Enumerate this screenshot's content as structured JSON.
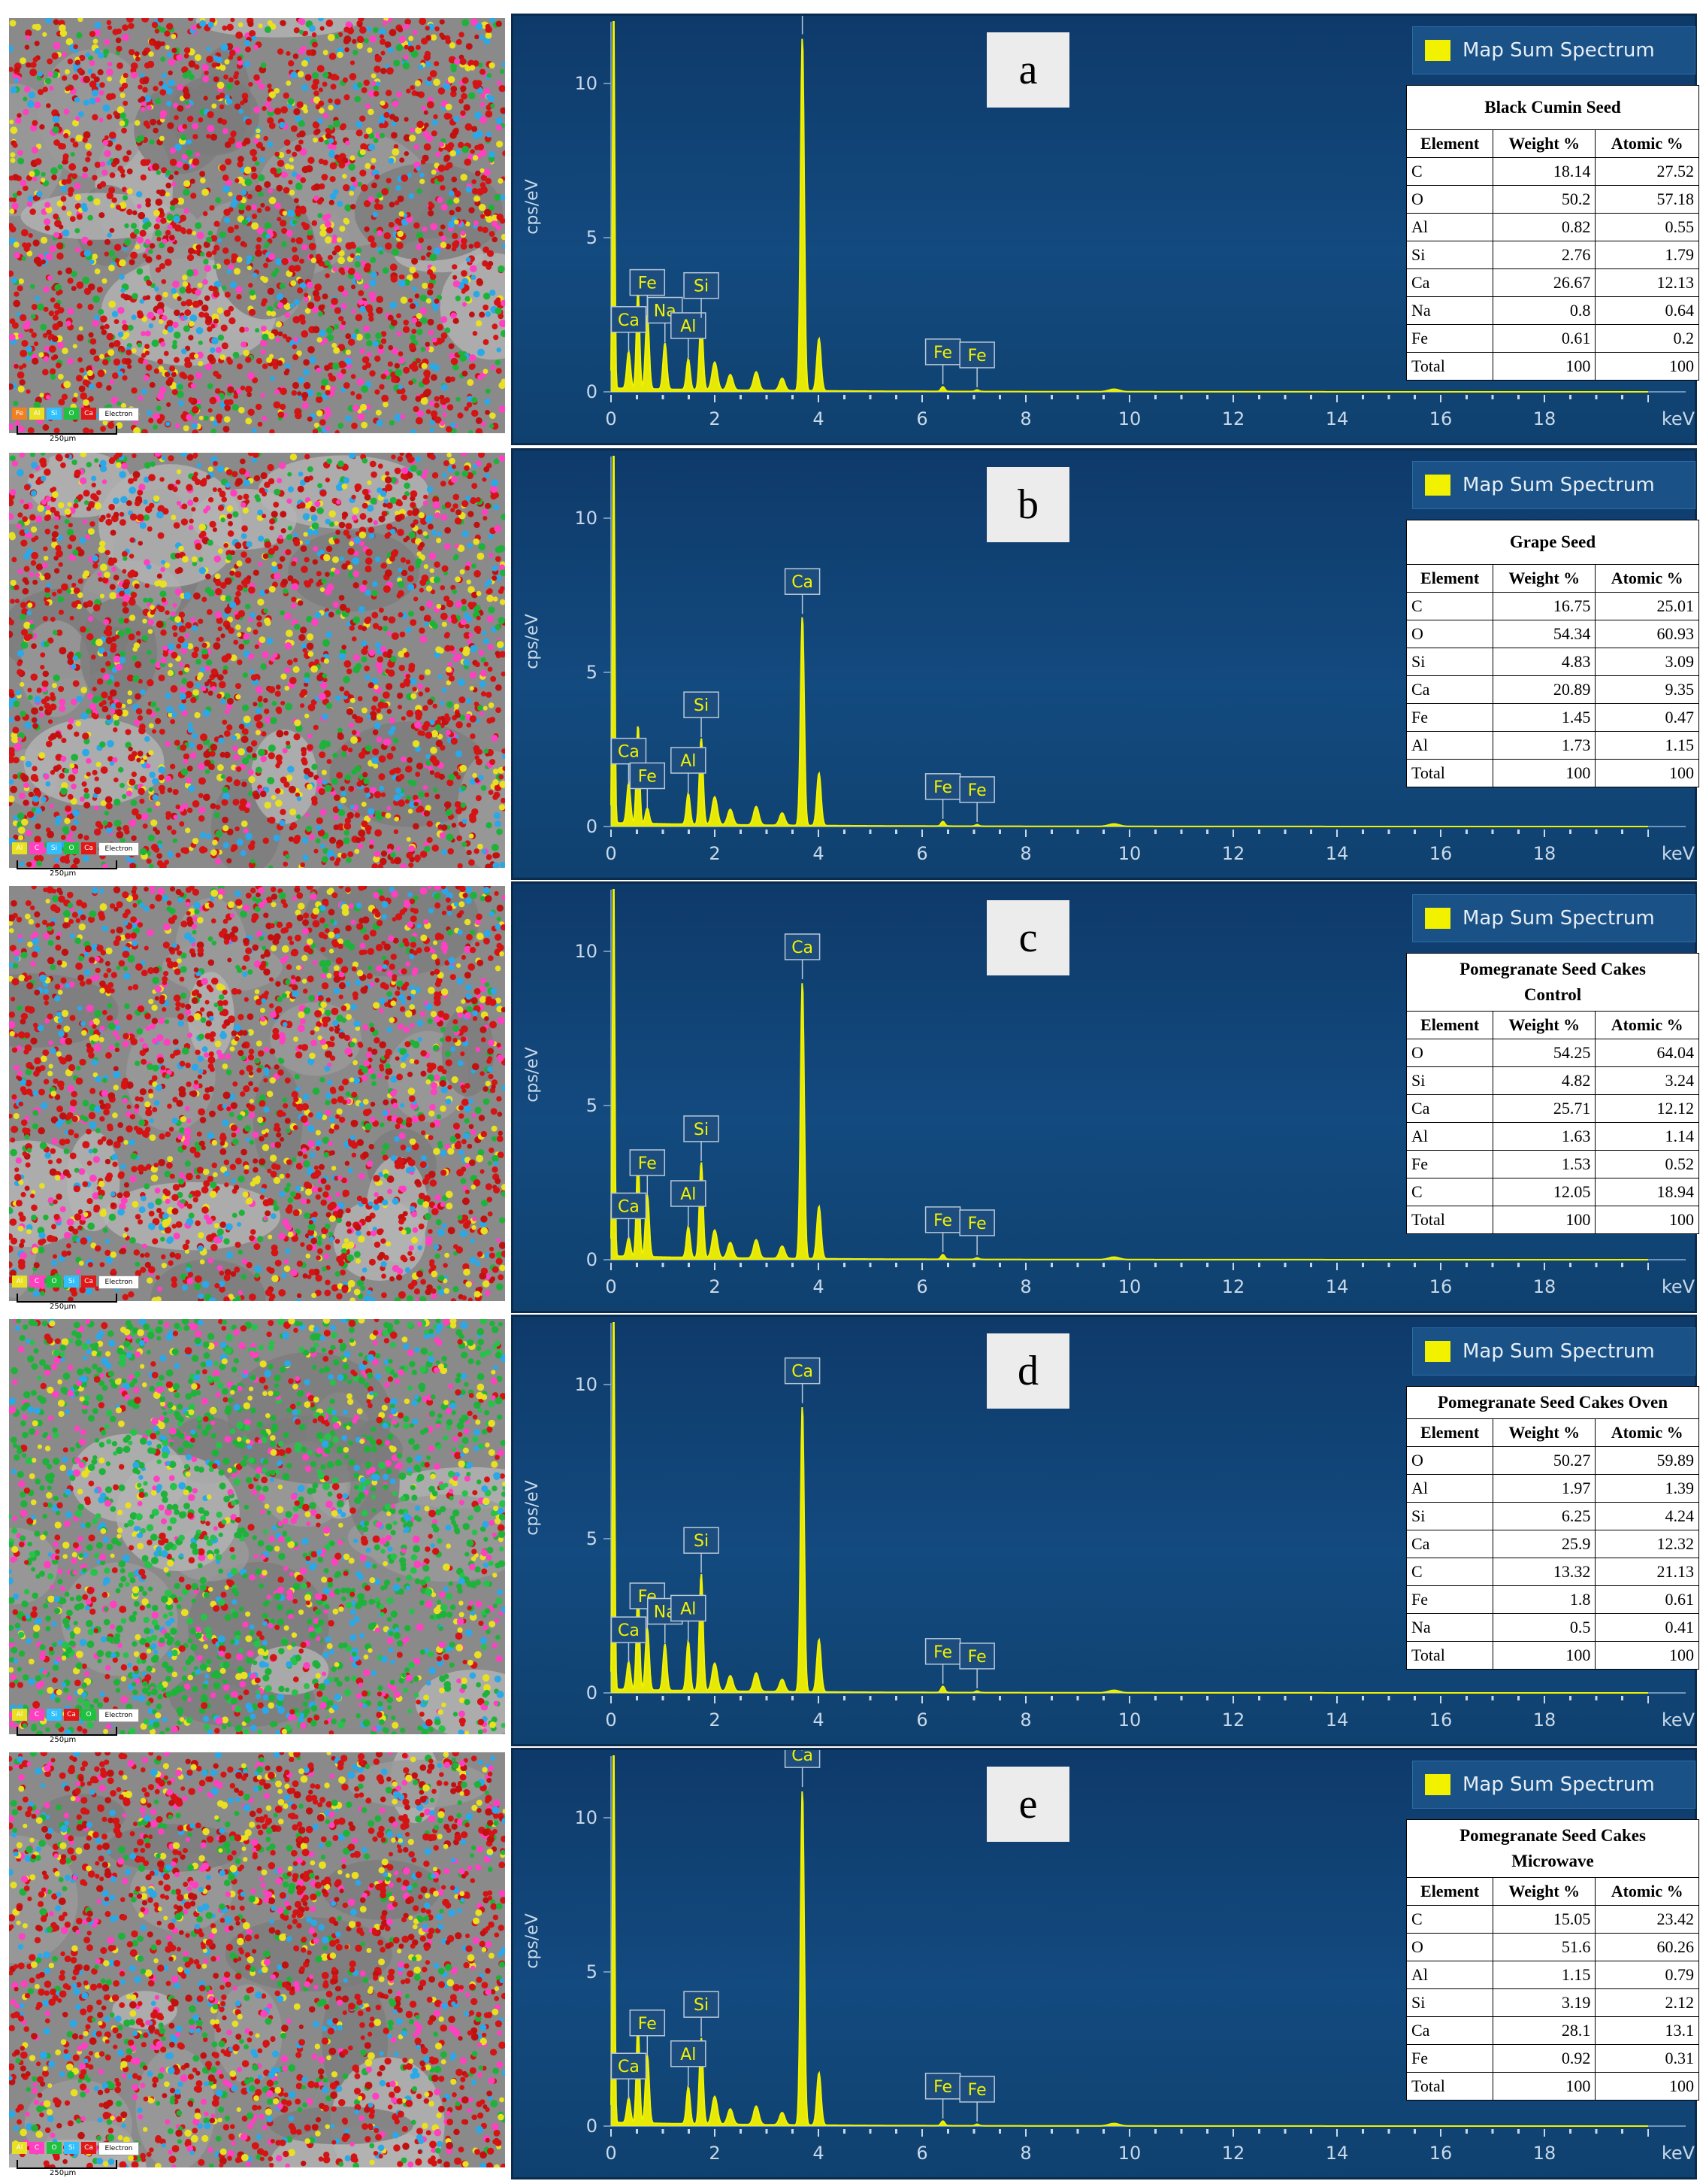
{
  "common": {
    "legend_label": "Map Sum Spectrum",
    "y_axis_label": "cps/eV",
    "x_axis_unit": "keV",
    "x_ticks": [
      "0",
      "2",
      "4",
      "6",
      "8",
      "10",
      "12",
      "14",
      "16",
      "18"
    ],
    "y_ticks": [
      "0",
      "5",
      "10"
    ],
    "scale_label": "250µm",
    "electron_label": "Electron",
    "table_headers": [
      "Element",
      "Weight %",
      "Atomic %"
    ],
    "spectrum_color": "#f2f200"
  },
  "panels": [
    {
      "letter": "a",
      "title": "Black Cumin Seed",
      "map_elements": [
        "Fe",
        "Al",
        "Si",
        "O",
        "Ca"
      ],
      "map_dominant": "red",
      "rows": [
        [
          "C",
          "18.14",
          "27.52"
        ],
        [
          "O",
          "50.2",
          "57.18"
        ],
        [
          "Al",
          "0.82",
          "0.55"
        ],
        [
          "Si",
          "2.76",
          "1.79"
        ],
        [
          "Ca",
          "26.67",
          "12.13"
        ],
        [
          "Na",
          "0.8",
          "0.64"
        ],
        [
          "Fe",
          "0.61",
          "0.2"
        ],
        [
          "Total",
          "100",
          "100"
        ]
      ],
      "peak_labels": [
        "Ca",
        "Fe",
        "Na",
        "Al",
        "Si",
        "Ca",
        "Fe",
        "Fe"
      ]
    },
    {
      "letter": "b",
      "title": "Grape Seed",
      "map_elements": [
        "Al",
        "C",
        "Si",
        "O",
        "Ca"
      ],
      "map_dominant": "red",
      "rows": [
        [
          "C",
          "16.75",
          "25.01"
        ],
        [
          "O",
          "54.34",
          "60.93"
        ],
        [
          "Si",
          "4.83",
          "3.09"
        ],
        [
          "Ca",
          "20.89",
          "9.35"
        ],
        [
          "Fe",
          "1.45",
          "0.47"
        ],
        [
          "Al",
          "1.73",
          "1.15"
        ],
        [
          "Total",
          "100",
          "100"
        ]
      ],
      "peak_labels": [
        "Ca",
        "Fe",
        "Al",
        "Si",
        "Ca",
        "Fe",
        "Fe"
      ]
    },
    {
      "letter": "c",
      "title": "Pomegranate Seed Cakes Control",
      "map_elements": [
        "Al",
        "C",
        "O",
        "Si",
        "Ca"
      ],
      "map_dominant": "red",
      "rows": [
        [
          "O",
          "54.25",
          "64.04"
        ],
        [
          "Si",
          "4.82",
          "3.24"
        ],
        [
          "Ca",
          "25.71",
          "12.12"
        ],
        [
          "Al",
          "1.63",
          "1.14"
        ],
        [
          "Fe",
          "1.53",
          "0.52"
        ],
        [
          "C",
          "12.05",
          "18.94"
        ],
        [
          "Total",
          "100",
          "100"
        ]
      ],
      "peak_labels": [
        "Ca",
        "Fe",
        "Al",
        "Si",
        "Ca",
        "Fe",
        "Fe"
      ]
    },
    {
      "letter": "d",
      "title": "Pomegranate Seed Cakes Oven",
      "map_elements": [
        "Al",
        "C",
        "Si",
        "Ca",
        "O"
      ],
      "map_dominant": "green",
      "rows": [
        [
          "O",
          "50.27",
          "59.89"
        ],
        [
          "Al",
          "1.97",
          "1.39"
        ],
        [
          "Si",
          "6.25",
          "4.24"
        ],
        [
          "Ca",
          "25.9",
          "12.32"
        ],
        [
          "C",
          "13.32",
          "21.13"
        ],
        [
          "Fe",
          "1.8",
          "0.61"
        ],
        [
          "Na",
          "0.5",
          "0.41"
        ],
        [
          "Total",
          "100",
          "100"
        ]
      ],
      "peak_labels": [
        "Ca",
        "Fe",
        "Na",
        "Al",
        "Si",
        "Ca",
        "Fe",
        "Fe"
      ]
    },
    {
      "letter": "e",
      "title": "Pomegranate Seed Cakes Microwave",
      "map_elements": [
        "Al",
        "C",
        "O",
        "Si",
        "Ca"
      ],
      "map_dominant": "red",
      "rows": [
        [
          "C",
          "15.05",
          "23.42"
        ],
        [
          "O",
          "51.6",
          "60.26"
        ],
        [
          "Al",
          "1.15",
          "0.79"
        ],
        [
          "Si",
          "3.19",
          "2.12"
        ],
        [
          "Ca",
          "28.1",
          "13.1"
        ],
        [
          "Fe",
          "0.92",
          "0.31"
        ],
        [
          "Total",
          "100",
          "100"
        ]
      ],
      "peak_labels": [
        "Ca",
        "Fe",
        "Al",
        "Si",
        "Ca",
        "Fe",
        "Fe"
      ]
    }
  ],
  "chart_data": [
    {
      "type": "line",
      "panel": "a",
      "xlabel": "keV",
      "ylabel": "cps/eV",
      "xlim": [
        0,
        20
      ],
      "ylim": [
        0,
        12
      ],
      "peaks": [
        {
          "label": "Ca",
          "x": 0.34,
          "y": 1.2
        },
        {
          "label": "Fe",
          "x": 0.7,
          "y": 2.4
        },
        {
          "label": "Na",
          "x": 1.04,
          "y": 1.5
        },
        {
          "label": "Al",
          "x": 1.49,
          "y": 1.0
        },
        {
          "label": "Si",
          "x": 1.74,
          "y": 2.3
        },
        {
          "label": "Ca",
          "x": 3.69,
          "y": 11.5
        },
        {
          "label": "Fe",
          "x": 6.4,
          "y": 0.15
        },
        {
          "label": "Fe",
          "x": 7.06,
          "y": 0.05
        }
      ]
    },
    {
      "type": "line",
      "panel": "b",
      "xlabel": "keV",
      "ylabel": "cps/eV",
      "xlim": [
        0,
        20
      ],
      "ylim": [
        0,
        12
      ],
      "peaks": [
        {
          "label": "Ca",
          "x": 0.34,
          "y": 1.3
        },
        {
          "label": "Fe",
          "x": 0.7,
          "y": 0.5
        },
        {
          "label": "Al",
          "x": 1.49,
          "y": 1.0
        },
        {
          "label": "Si",
          "x": 1.74,
          "y": 2.8
        },
        {
          "label": "Ca",
          "x": 3.69,
          "y": 6.8
        },
        {
          "label": "Fe",
          "x": 6.4,
          "y": 0.15
        },
        {
          "label": "Fe",
          "x": 7.06,
          "y": 0.05
        }
      ]
    },
    {
      "type": "line",
      "panel": "c",
      "xlabel": "keV",
      "ylabel": "cps/eV",
      "xlim": [
        0,
        20
      ],
      "ylim": [
        0,
        12
      ],
      "peaks": [
        {
          "label": "Ca",
          "x": 0.34,
          "y": 0.6
        },
        {
          "label": "Fe",
          "x": 0.7,
          "y": 2.0
        },
        {
          "label": "Al",
          "x": 1.49,
          "y": 1.0
        },
        {
          "label": "Si",
          "x": 1.74,
          "y": 3.1
        },
        {
          "label": "Ca",
          "x": 3.69,
          "y": 9.0
        },
        {
          "label": "Fe",
          "x": 6.4,
          "y": 0.15
        },
        {
          "label": "Fe",
          "x": 7.06,
          "y": 0.05
        }
      ]
    },
    {
      "type": "line",
      "panel": "d",
      "xlabel": "keV",
      "ylabel": "cps/eV",
      "xlim": [
        0,
        20
      ],
      "ylim": [
        0,
        12
      ],
      "peaks": [
        {
          "label": "Ca",
          "x": 0.34,
          "y": 0.9
        },
        {
          "label": "Fe",
          "x": 0.7,
          "y": 2.0
        },
        {
          "label": "Na",
          "x": 1.04,
          "y": 1.5
        },
        {
          "label": "Al",
          "x": 1.49,
          "y": 1.6
        },
        {
          "label": "Si",
          "x": 1.74,
          "y": 3.8
        },
        {
          "label": "Ca",
          "x": 3.69,
          "y": 9.3
        },
        {
          "label": "Fe",
          "x": 6.4,
          "y": 0.2
        },
        {
          "label": "Fe",
          "x": 7.06,
          "y": 0.05
        }
      ]
    },
    {
      "type": "line",
      "panel": "e",
      "xlabel": "keV",
      "ylabel": "cps/eV",
      "xlim": [
        0,
        20
      ],
      "ylim": [
        0,
        12
      ],
      "peaks": [
        {
          "label": "Ca",
          "x": 0.34,
          "y": 0.8
        },
        {
          "label": "Fe",
          "x": 0.7,
          "y": 2.2
        },
        {
          "label": "Al",
          "x": 1.49,
          "y": 1.2
        },
        {
          "label": "Si",
          "x": 1.74,
          "y": 2.8
        },
        {
          "label": "Ca",
          "x": 3.69,
          "y": 10.9
        },
        {
          "label": "Fe",
          "x": 6.4,
          "y": 0.15
        },
        {
          "label": "Fe",
          "x": 7.06,
          "y": 0.05
        }
      ]
    }
  ]
}
